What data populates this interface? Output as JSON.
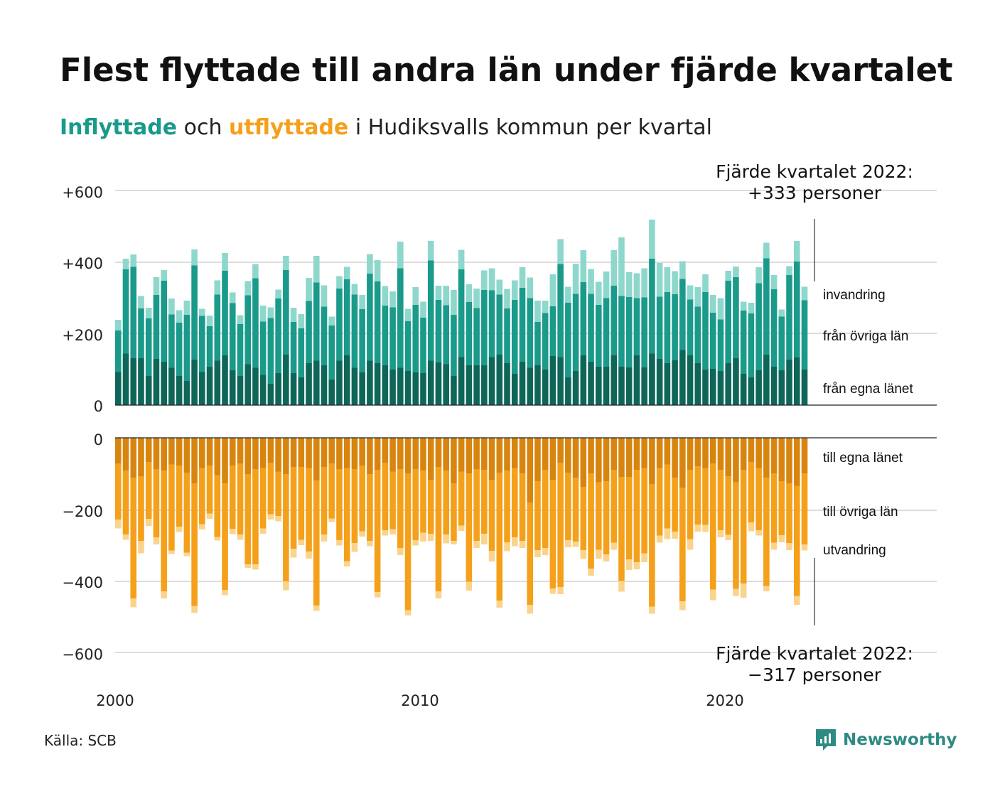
{
  "title": "Flest flyttade till andra län under fjärde kvartalet",
  "subtitle": {
    "inflow_word": "Inflyttade",
    "connector": "och",
    "outflow_word": "utflyttade",
    "rest": "i Hudiksvalls kommun per kvartal"
  },
  "source": "Källa: SCB",
  "brand": "Newsworthy",
  "colors": {
    "in_egna": "#0e6659",
    "in_ovriga": "#1a9a8a",
    "in_invandring": "#8ed7cc",
    "out_egna": "#d8850f",
    "out_ovriga": "#f5a01a",
    "out_utvandring": "#fad48c",
    "grid": "#dddddd",
    "brand": "#2e8b84"
  },
  "annotations": {
    "top_line1": "Fjärde kvartalet 2022:",
    "top_line2": "+333 personer",
    "bottom_line1": "Fjärde kvartalet 2022:",
    "bottom_line2": "−317 personer"
  },
  "series_labels": {
    "invandring": "invandring",
    "fran_ovriga_lan": "från övriga län",
    "fran_egna_lanet": "från egna länet",
    "till_egna_lanet": "till egna länet",
    "till_ovriga_lan": "till övriga län",
    "utvandring": "utvandring"
  },
  "chart_data": {
    "type": "bar",
    "stacked": true,
    "grid": true,
    "x_ticks": [
      "2000",
      "2010",
      "2020"
    ],
    "y_ticks_top": [
      "+600",
      "+400",
      "+200",
      "0"
    ],
    "y_ticks_bottom": [
      "0",
      "−200",
      "−400",
      "−600"
    ],
    "ylim_top": [
      0,
      600
    ],
    "ylim_bottom": [
      -600,
      0
    ],
    "x_start": "2000 Q1",
    "x_end": "2022 Q4",
    "inflyttade": {
      "fran_egna_lanet": [
        93,
        145,
        132,
        132,
        82,
        130,
        122,
        105,
        82,
        68,
        128,
        93,
        108,
        125,
        140,
        98,
        82,
        115,
        105,
        85,
        60,
        90,
        142,
        90,
        78,
        118,
        125,
        112,
        72,
        125,
        140,
        105,
        92,
        125,
        118,
        112,
        100,
        105,
        96,
        92,
        90,
        125,
        120,
        115,
        82,
        135,
        112,
        112,
        112,
        135,
        142,
        118,
        88,
        122,
        105,
        112,
        100,
        138,
        135,
        78,
        96,
        140,
        122,
        108,
        108,
        140,
        108,
        106,
        140,
        106,
        145,
        130,
        118,
        126,
        155,
        140,
        118,
        100,
        102,
        96,
        118,
        132,
        88,
        78,
        98,
        142,
        108,
        98,
        128,
        134,
        100
      ],
      "fran_ovriga_lan": [
        117,
        237,
        257,
        140,
        162,
        180,
        228,
        150,
        150,
        186,
        265,
        158,
        114,
        186,
        238,
        189,
        146,
        194,
        252,
        150,
        185,
        210,
        238,
        144,
        138,
        175,
        220,
        165,
        152,
        203,
        214,
        206,
        178,
        245,
        230,
        168,
        175,
        280,
        140,
        190,
        156,
        282,
        176,
        166,
        172,
        247,
        178,
        161,
        212,
        188,
        169,
        154,
        208,
        208,
        196,
        122,
        159,
        140,
        262,
        210,
        217,
        206,
        191,
        174,
        193,
        196,
        199,
        198,
        161,
        197,
        267,
        175,
        200,
        186,
        200,
        157,
        159,
        218,
        158,
        145,
        232,
        228,
        178,
        180,
        245,
        271,
        218,
        151,
        238,
        270,
        195
      ],
      "invandring": [
        30,
        30,
        35,
        35,
        30,
        50,
        30,
        45,
        35,
        40,
        45,
        20,
        30,
        40,
        50,
        30,
        25,
        40,
        40,
        45,
        30,
        25,
        40,
        40,
        40,
        65,
        75,
        60,
        25,
        35,
        35,
        30,
        40,
        55,
        60,
        55,
        45,
        75,
        35,
        50,
        45,
        55,
        40,
        55,
        70,
        55,
        50,
        55,
        55,
        62,
        42,
        55,
        55,
        58,
        58,
        60,
        35,
        90,
        70,
        45,
        85,
        90,
        70,
        65,
        75,
        100,
        165,
        70,
        70,
        82,
        110,
        95,
        70,
        65,
        50,
        40,
        55,
        50,
        50,
        60,
        28,
        30,
        25,
        30,
        45,
        44,
        40,
        20,
        25,
        58,
        38
      ]
    },
    "utflyttade": {
      "till_egna_lanet": [
        -72,
        -92,
        -112,
        -108,
        -68,
        -88,
        -92,
        -75,
        -78,
        -98,
        -128,
        -85,
        -78,
        -105,
        -128,
        -78,
        -72,
        -102,
        -88,
        -85,
        -70,
        -95,
        -102,
        -82,
        -82,
        -85,
        -120,
        -82,
        -72,
        -88,
        -85,
        -88,
        -78,
        -102,
        -90,
        -70,
        -95,
        -88,
        -100,
        -88,
        -92,
        -118,
        -82,
        -92,
        -128,
        -95,
        -100,
        -88,
        -90,
        -118,
        -98,
        -92,
        -85,
        -100,
        -182,
        -122,
        -90,
        -118,
        -70,
        -98,
        -112,
        -138,
        -100,
        -125,
        -122,
        -90,
        -110,
        -110,
        -90,
        -85,
        -130,
        -85,
        -75,
        -112,
        -140,
        -90,
        -80,
        -85,
        -72,
        -90,
        -108,
        -125,
        -90,
        -68,
        -85,
        -112,
        -100,
        -122,
        -128,
        -135,
        -100
      ],
      "till_ovriga_lan": [
        -158,
        -180,
        -340,
        -182,
        -160,
        -192,
        -340,
        -242,
        -172,
        -225,
        -345,
        -158,
        -135,
        -174,
        -300,
        -178,
        -200,
        -254,
        -268,
        -170,
        -145,
        -125,
        -302,
        -230,
        -205,
        -235,
        -352,
        -190,
        -155,
        -200,
        -262,
        -208,
        -185,
        -188,
        -344,
        -190,
        -162,
        -222,
        -385,
        -200,
        -175,
        -152,
        -350,
        -180,
        -162,
        -152,
        -305,
        -202,
        -180,
        -200,
        -360,
        -202,
        -195,
        -190,
        -288,
        -194,
        -220,
        -306,
        -350,
        -190,
        -180,
        -178,
        -268,
        -190,
        -206,
        -205,
        -293,
        -232,
        -260,
        -240,
        -345,
        -190,
        -180,
        -152,
        -320,
        -195,
        -164,
        -160,
        -355,
        -170,
        -165,
        -300,
        -320,
        -170,
        -175,
        -305,
        -195,
        -152,
        -168,
        -310,
        -200
      ],
      "utvandring": [
        -25,
        -15,
        -25,
        -35,
        -20,
        -20,
        -20,
        -10,
        -15,
        -10,
        -20,
        -15,
        -15,
        -10,
        -15,
        -15,
        -15,
        -10,
        -15,
        -15,
        -15,
        -15,
        -25,
        -25,
        -15,
        -20,
        -15,
        -20,
        -10,
        -15,
        -15,
        -25,
        -15,
        -15,
        -15,
        -15,
        -15,
        -20,
        -15,
        -15,
        -25,
        -20,
        -20,
        -25,
        -10,
        -15,
        -25,
        -20,
        -30,
        -30,
        -20,
        -25,
        -25,
        -20,
        -25,
        -20,
        -20,
        -15,
        -20,
        -20,
        -15,
        -25,
        -20,
        -25,
        -20,
        -20,
        -30,
        -30,
        -20,
        -25,
        -20,
        -20,
        -30,
        -20,
        -25,
        -30,
        -20,
        -20,
        -30,
        -20,
        -15,
        -20,
        -40,
        -25,
        -15,
        -15,
        -20,
        -20,
        -20,
        -25,
        -17
      ]
    }
  }
}
